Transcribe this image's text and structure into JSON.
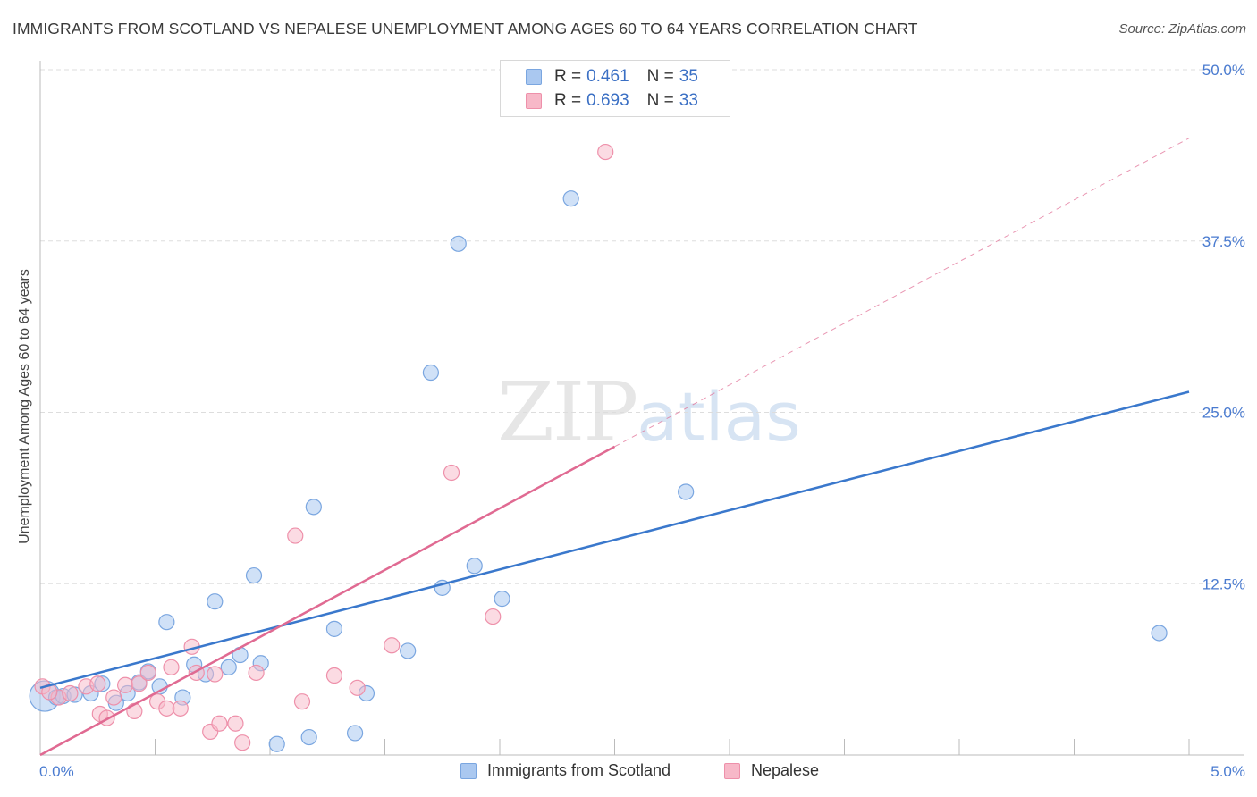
{
  "header": {
    "title": "IMMIGRANTS FROM SCOTLAND VS NEPALESE UNEMPLOYMENT AMONG AGES 60 TO 64 YEARS CORRELATION CHART",
    "source": "Source: ZipAtlas.com"
  },
  "watermark": {
    "zip": "ZIP",
    "atlas": "atlas"
  },
  "legend": {
    "series1": {
      "r_label": "R =",
      "r_value": "0.461",
      "n_label": "N =",
      "n_value": "35"
    },
    "series2": {
      "r_label": "R =",
      "r_value": "0.693",
      "n_label": "N =",
      "n_value": "33"
    }
  },
  "colors": {
    "blue_fill": "#aac8f0",
    "blue_stroke": "#7aa6e0",
    "blue_line": "#3a78cc",
    "pink_fill": "#f7b8c8",
    "pink_stroke": "#ee90aa",
    "pink_line": "#e06a92",
    "tick_text": "#4a7bd0",
    "grid": "#dddddd"
  },
  "chart_data": {
    "type": "scatter",
    "title": "IMMIGRANTS FROM SCOTLAND VS NEPALESE UNEMPLOYMENT AMONG AGES 60 TO 64 YEARS CORRELATION CHART",
    "xlabel": "",
    "ylabel": "Unemployment Among Ages 60 to 64 years",
    "xlim": [
      0,
      5
    ],
    "ylim": [
      0,
      50
    ],
    "x_tick_labels": [
      "0.0%",
      "5.0%"
    ],
    "y_tick_values": [
      12.5,
      25.0,
      37.5,
      50.0
    ],
    "y_tick_labels": [
      "12.5%",
      "25.0%",
      "37.5%",
      "50.0%"
    ],
    "series": [
      {
        "name": "Immigrants from Scotland",
        "r": 0.461,
        "n": 35,
        "trend": {
          "x": [
            0.0,
            5.0
          ],
          "y": [
            4.9,
            26.5
          ]
        },
        "points": [
          {
            "x": 0.02,
            "y": 4.3,
            "big": true
          },
          {
            "x": 0.07,
            "y": 4.2
          },
          {
            "x": 0.1,
            "y": 4.3
          },
          {
            "x": 0.15,
            "y": 4.4
          },
          {
            "x": 0.22,
            "y": 4.5
          },
          {
            "x": 0.27,
            "y": 5.2
          },
          {
            "x": 0.33,
            "y": 3.8
          },
          {
            "x": 0.38,
            "y": 4.5
          },
          {
            "x": 0.43,
            "y": 5.3
          },
          {
            "x": 0.47,
            "y": 6.1
          },
          {
            "x": 0.52,
            "y": 5.0
          },
          {
            "x": 0.55,
            "y": 9.7
          },
          {
            "x": 0.62,
            "y": 4.2
          },
          {
            "x": 0.67,
            "y": 6.6
          },
          {
            "x": 0.72,
            "y": 5.9
          },
          {
            "x": 0.76,
            "y": 11.2
          },
          {
            "x": 0.82,
            "y": 6.4
          },
          {
            "x": 0.87,
            "y": 7.3
          },
          {
            "x": 0.93,
            "y": 13.1
          },
          {
            "x": 0.96,
            "y": 6.7
          },
          {
            "x": 1.03,
            "y": 0.8
          },
          {
            "x": 1.17,
            "y": 1.3
          },
          {
            "x": 1.19,
            "y": 18.1
          },
          {
            "x": 1.28,
            "y": 9.2
          },
          {
            "x": 1.37,
            "y": 1.6
          },
          {
            "x": 1.42,
            "y": 4.5
          },
          {
            "x": 1.6,
            "y": 7.6
          },
          {
            "x": 1.7,
            "y": 27.9
          },
          {
            "x": 1.75,
            "y": 12.2
          },
          {
            "x": 1.82,
            "y": 37.3
          },
          {
            "x": 1.89,
            "y": 13.8
          },
          {
            "x": 2.01,
            "y": 11.4
          },
          {
            "x": 2.31,
            "y": 40.6
          },
          {
            "x": 2.81,
            "y": 19.2
          },
          {
            "x": 4.87,
            "y": 8.9
          }
        ]
      },
      {
        "name": "Nepalese",
        "r": 0.693,
        "n": 33,
        "trend": {
          "x": [
            0.0,
            2.5
          ],
          "y": [
            0.0,
            22.5
          ]
        },
        "trend_extension": {
          "x": [
            2.5,
            5.0
          ],
          "y": [
            22.5,
            45.0
          ]
        },
        "points": [
          {
            "x": 0.01,
            "y": 5.0
          },
          {
            "x": 0.08,
            "y": 4.2
          },
          {
            "x": 0.13,
            "y": 4.5
          },
          {
            "x": 0.2,
            "y": 5.0
          },
          {
            "x": 0.25,
            "y": 5.2
          },
          {
            "x": 0.26,
            "y": 3.0
          },
          {
            "x": 0.29,
            "y": 2.7
          },
          {
            "x": 0.32,
            "y": 4.2
          },
          {
            "x": 0.37,
            "y": 5.1
          },
          {
            "x": 0.41,
            "y": 3.2
          },
          {
            "x": 0.43,
            "y": 5.2
          },
          {
            "x": 0.47,
            "y": 6.0
          },
          {
            "x": 0.51,
            "y": 3.9
          },
          {
            "x": 0.55,
            "y": 3.4
          },
          {
            "x": 0.57,
            "y": 6.4
          },
          {
            "x": 0.61,
            "y": 3.4
          },
          {
            "x": 0.66,
            "y": 7.9
          },
          {
            "x": 0.68,
            "y": 6.0
          },
          {
            "x": 0.74,
            "y": 1.7
          },
          {
            "x": 0.76,
            "y": 5.9
          },
          {
            "x": 0.78,
            "y": 2.3
          },
          {
            "x": 0.85,
            "y": 2.3
          },
          {
            "x": 0.88,
            "y": 0.9
          },
          {
            "x": 0.94,
            "y": 6.0
          },
          {
            "x": 1.11,
            "y": 16.0
          },
          {
            "x": 1.14,
            "y": 3.9
          },
          {
            "x": 1.28,
            "y": 5.8
          },
          {
            "x": 1.38,
            "y": 4.9
          },
          {
            "x": 1.53,
            "y": 8.0
          },
          {
            "x": 1.79,
            "y": 20.6
          },
          {
            "x": 1.97,
            "y": 10.1
          },
          {
            "x": 2.46,
            "y": 44.0
          },
          {
            "x": 0.04,
            "y": 4.6
          }
        ]
      }
    ]
  },
  "bottom_legend": {
    "item1": "Immigrants from Scotland",
    "item2": "Nepalese"
  }
}
